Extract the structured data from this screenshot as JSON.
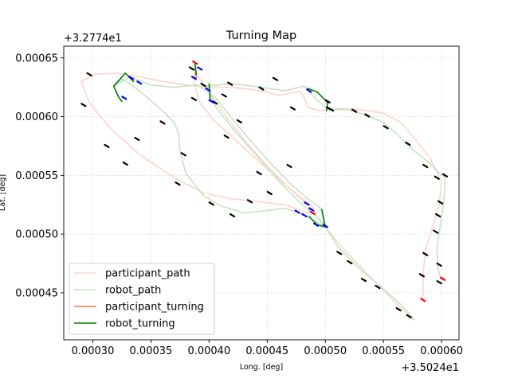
{
  "chart_data": {
    "type": "line",
    "title": "Turning Map",
    "xlabel": "Long. [deg]",
    "ylabel": "Lat. [deg]",
    "x_offset_label": "+3.5024e1",
    "y_offset_label": "+3.2774e1",
    "xlim": [
      0.000275,
      0.000615
    ],
    "ylim": [
      0.00041,
      0.00066
    ],
    "x_ticks": [
      0.0003,
      0.00035,
      0.0004,
      0.00045,
      0.0005,
      0.00055,
      0.0006
    ],
    "x_tick_labels": [
      "0.00030",
      "0.00035",
      "0.00040",
      "0.00045",
      "0.00050",
      "0.00055",
      "0.00060"
    ],
    "y_ticks": [
      0.00045,
      0.0005,
      0.00055,
      0.0006,
      0.00065
    ],
    "y_tick_labels": [
      "0.00045",
      "0.00050",
      "0.00055",
      "0.00060",
      "0.00065"
    ],
    "grid": true,
    "legend_position": "lower-left",
    "colors": {
      "participant_path": "#fdd5cc",
      "robot_path": "#c6e2c6",
      "participant_turning": "#f4784a",
      "robot_turning": "#008000",
      "marker_black": "#000000",
      "marker_blue": "#0000ff",
      "marker_red": "#ff0000"
    },
    "series": [
      {
        "name": "participant_path",
        "points": [
          [
            0.000576,
            0.000427
          ],
          [
            0.00056,
            0.000442
          ],
          [
            0.00054,
            0.000462
          ],
          [
            0.000515,
            0.000488
          ],
          [
            0.000495,
            0.000512
          ],
          [
            0.000488,
            0.000522
          ],
          [
            0.00047,
            0.000538
          ],
          [
            0.00045,
            0.000558
          ],
          [
            0.000432,
            0.000578
          ],
          [
            0.000415,
            0.0006
          ],
          [
            0.000402,
            0.000618
          ],
          [
            0.000392,
            0.000632
          ],
          [
            0.000388,
            0.00064
          ],
          [
            0.000387,
            0.000628
          ],
          [
            0.000392,
            0.000612
          ],
          [
            0.000405,
            0.000596
          ],
          [
            0.000425,
            0.000578
          ],
          [
            0.000445,
            0.00056
          ],
          [
            0.000462,
            0.000545
          ],
          [
            0.000478,
            0.000532
          ],
          [
            0.00049,
            0.000523
          ],
          [
            0.000485,
            0.000518
          ],
          [
            0.000465,
            0.000525
          ],
          [
            0.00044,
            0.000528
          ],
          [
            0.00042,
            0.00053
          ],
          [
            0.000395,
            0.000535
          ],
          [
            0.00037,
            0.000548
          ],
          [
            0.00034,
            0.000568
          ],
          [
            0.000315,
            0.00059
          ],
          [
            0.000297,
            0.000612
          ],
          [
            0.00029,
            0.00063
          ],
          [
            0.000302,
            0.000636
          ],
          [
            0.00032,
            0.000637
          ],
          [
            0.00034,
            0.000634
          ],
          [
            0.00036,
            0.00063
          ],
          [
            0.00038,
            0.000627
          ],
          [
            0.0004,
            0.000625
          ],
          [
            0.00042,
            0.000625
          ],
          [
            0.000445,
            0.000622
          ],
          [
            0.00046,
            0.000618
          ],
          [
            0.00047,
            0.00062
          ],
          [
            0.000478,
            0.000622
          ],
          [
            0.000482,
            0.000616
          ],
          [
            0.000485,
            0.000608
          ],
          [
            0.000495,
            0.000605
          ],
          [
            0.00051,
            0.000607
          ],
          [
            0.00053,
            0.000606
          ],
          [
            0.00055,
            0.000603
          ],
          [
            0.000565,
            0.000595
          ],
          [
            0.000578,
            0.00058
          ],
          [
            0.00059,
            0.000565
          ],
          [
            0.0006,
            0.000545
          ],
          [
            0.000598,
            0.000525
          ],
          [
            0.000592,
            0.000505
          ],
          [
            0.000586,
            0.000485
          ],
          [
            0.000584,
            0.000465
          ],
          [
            0.000584,
            0.000445
          ]
        ]
      },
      {
        "name": "robot_path",
        "points": [
          [
            0.000577,
            0.000427
          ],
          [
            0.000565,
            0.00044
          ],
          [
            0.000548,
            0.000455
          ],
          [
            0.00053,
            0.00047
          ],
          [
            0.000512,
            0.000488
          ],
          [
            0.0005,
            0.000506
          ],
          [
            0.000488,
            0.000513
          ],
          [
            0.000478,
            0.000518
          ],
          [
            0.000465,
            0.000522
          ],
          [
            0.00045,
            0.00052
          ],
          [
            0.00043,
            0.000518
          ],
          [
            0.00041,
            0.000524
          ],
          [
            0.000395,
            0.000533
          ],
          [
            0.00038,
            0.000552
          ],
          [
            0.000375,
            0.00057
          ],
          [
            0.000374,
            0.000585
          ],
          [
            0.00037,
            0.000595
          ],
          [
            0.00036,
            0.000605
          ],
          [
            0.000345,
            0.000618
          ],
          [
            0.000332,
            0.000628
          ],
          [
            0.000325,
            0.000632
          ],
          [
            0.000318,
            0.000626
          ],
          [
            0.000332,
            0.000634
          ],
          [
            0.00035,
            0.000627
          ],
          [
            0.00037,
            0.000625
          ],
          [
            0.00039,
            0.000627
          ],
          [
            0.000405,
            0.000617
          ],
          [
            0.00042,
            0.000598
          ],
          [
            0.000437,
            0.000578
          ],
          [
            0.000455,
            0.000558
          ],
          [
            0.000472,
            0.000541
          ],
          [
            0.000485,
            0.00053
          ],
          [
            0.000496,
            0.000522
          ],
          [
            0.0005,
            0.000506
          ],
          [
            0.000495,
            0.000513
          ],
          [
            0.000478,
            0.000527
          ],
          [
            0.00046,
            0.000545
          ],
          [
            0.00044,
            0.000568
          ],
          [
            0.000422,
            0.000588
          ],
          [
            0.000406,
            0.000608
          ],
          [
            0.000398,
            0.000626
          ],
          [
            0.00042,
            0.000628
          ],
          [
            0.000445,
            0.000625
          ],
          [
            0.000465,
            0.000622
          ],
          [
            0.000482,
            0.000626
          ],
          [
            0.000492,
            0.000615
          ],
          [
            0.000502,
            0.000606
          ],
          [
            0.00052,
            0.000606
          ],
          [
            0.000538,
            0.0006
          ],
          [
            0.00055,
            0.000595
          ],
          [
            0.000562,
            0.000585
          ],
          [
            0.000575,
            0.000572
          ],
          [
            0.000588,
            0.000562
          ],
          [
            0.000598,
            0.000552
          ],
          [
            0.000603,
            0.000548
          ],
          [
            0.000602,
            0.000528
          ],
          [
            0.000599,
            0.000508
          ],
          [
            0.000596,
            0.000488
          ],
          [
            0.000597,
            0.00047
          ],
          [
            0.0006,
            0.00046
          ]
        ]
      },
      {
        "name": "participant_turning",
        "points": [
          [
            0.000388,
            0.000642
          ],
          [
            0.000389,
            0.000633
          ]
        ]
      },
      {
        "name": "robot_turning",
        "segments": [
          [
            [
              0.000318,
              0.000626
            ],
            [
              0.000328,
              0.000637
            ],
            [
              0.000335,
              0.00063
            ]
          ],
          [
            [
              0.000318,
              0.000626
            ],
            [
              0.000322,
              0.000617
            ],
            [
              0.000325,
              0.000613
            ]
          ],
          [
            [
              0.000388,
              0.000645
            ],
            [
              0.000389,
              0.000636
            ]
          ],
          [
            [
              0.0004,
              0.000628
            ],
            [
              0.000401,
              0.000614
            ]
          ],
          [
            [
              0.000485,
              0.000624
            ],
            [
              0.000493,
              0.000621
            ],
            [
              0.000502,
              0.000612
            ],
            [
              0.000501,
              0.000605
            ]
          ],
          [
            [
              0.000497,
              0.000521
            ],
            [
              0.0005,
              0.000506
            ],
            [
              0.000493,
              0.000508
            ],
            [
              0.000486,
              0.000515
            ]
          ]
        ]
      }
    ],
    "markers": {
      "black": [
        [
          0.000297,
          0.000636
        ],
        [
          0.000292,
          0.00061
        ],
        [
          0.000312,
          0.000575
        ],
        [
          0.000328,
          0.00056
        ],
        [
          0.000338,
          0.000581
        ],
        [
          0.00036,
          0.000595
        ],
        [
          0.000373,
          0.000543
        ],
        [
          0.000378,
          0.000568
        ],
        [
          0.000402,
          0.000526
        ],
        [
          0.00042,
          0.000516
        ],
        [
          0.000435,
          0.000528
        ],
        [
          0.000452,
          0.000535
        ],
        [
          0.000469,
          0.000558
        ],
        [
          0.000443,
          0.000552
        ],
        [
          0.000415,
          0.000583
        ],
        [
          0.000426,
          0.000596
        ],
        [
          0.000405,
          0.000612
        ],
        [
          0.000413,
          0.000618
        ],
        [
          0.000385,
          0.000641
        ],
        [
          0.000387,
          0.000615
        ],
        [
          0.000395,
          0.000627
        ],
        [
          0.000418,
          0.000628
        ],
        [
          0.000445,
          0.000624
        ],
        [
          0.000457,
          0.000632
        ],
        [
          0.000472,
          0.000607
        ],
        [
          0.000502,
          0.000613
        ],
        [
          0.000503,
          0.000607
        ],
        [
          0.000505,
          0.000606
        ],
        [
          0.000525,
          0.000605
        ],
        [
          0.000536,
          0.000601
        ],
        [
          0.000552,
          0.000591
        ],
        [
          0.000571,
          0.000577
        ],
        [
          0.000586,
          0.000558
        ],
        [
          0.000596,
          0.000548
        ],
        [
          0.000603,
          0.00055
        ],
        [
          0.000599,
          0.000527
        ],
        [
          0.000597,
          0.000516
        ],
        [
          0.000595,
          0.000502
        ],
        [
          0.000586,
          0.000483
        ],
        [
          0.000583,
          0.000465
        ],
        [
          0.000598,
          0.000474
        ],
        [
          0.000598,
          0.000459
        ],
        [
          0.000512,
          0.000484
        ],
        [
          0.000521,
          0.000476
        ],
        [
          0.000533,
          0.000461
        ],
        [
          0.000545,
          0.000455
        ],
        [
          0.000563,
          0.000436
        ],
        [
          0.000572,
          0.00043
        ]
      ],
      "blue": [
        [
          0.000333,
          0.000633
        ],
        [
          0.00034,
          0.000629
        ],
        [
          0.000387,
          0.000633
        ],
        [
          0.000392,
          0.000641
        ],
        [
          0.000399,
          0.000623
        ],
        [
          0.000402,
          0.000613
        ],
        [
          0.000484,
          0.000526
        ],
        [
          0.000488,
          0.000521
        ],
        [
          0.000482,
          0.000516
        ],
        [
          0.000486,
          0.000622
        ],
        [
          0.0005,
          0.000507
        ],
        [
          0.000492,
          0.000508
        ],
        [
          0.000476,
          0.000519
        ],
        [
          0.000327,
          0.000616
        ]
      ],
      "red": [
        [
          0.000388,
          0.000646
        ],
        [
          0.000489,
          0.000518
        ],
        [
          0.000584,
          0.000444
        ],
        [
          0.000601,
          0.000462
        ]
      ]
    }
  },
  "legend": {
    "items": [
      {
        "label": "participant_path",
        "color": "#fdd5cc"
      },
      {
        "label": "robot_path",
        "color": "#c6e2c6"
      },
      {
        "label": "participant_turning",
        "color": "#f4784a"
      },
      {
        "label": "robot_turning",
        "color": "#008000"
      }
    ]
  }
}
